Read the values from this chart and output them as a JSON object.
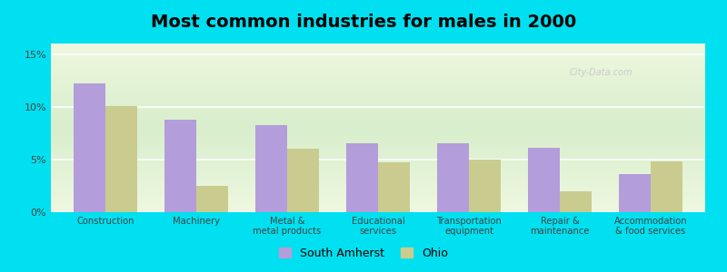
{
  "title": "Most common industries for males in 2000",
  "categories": [
    "Construction",
    "Machinery",
    "Metal &\nmetal products",
    "Educational\nservices",
    "Transportation\nequipment",
    "Repair &\nmaintenance",
    "Accommodation\n& food services"
  ],
  "south_amherst": [
    12.2,
    8.8,
    8.3,
    6.5,
    6.5,
    6.1,
    3.6
  ],
  "ohio": [
    10.1,
    2.5,
    6.0,
    4.7,
    5.0,
    2.0,
    4.8
  ],
  "bar_color_amherst": "#b39ddb",
  "bar_color_ohio": "#c9cc8e",
  "background_outer": "#00e0f0",
  "ylim": [
    0,
    16
  ],
  "yticks": [
    0,
    5,
    10,
    15
  ],
  "ytick_labels": [
    "0%",
    "5%",
    "10%",
    "15%"
  ],
  "legend_labels": [
    "South Amherst",
    "Ohio"
  ],
  "title_fontsize": 14,
  "bar_width": 0.35
}
